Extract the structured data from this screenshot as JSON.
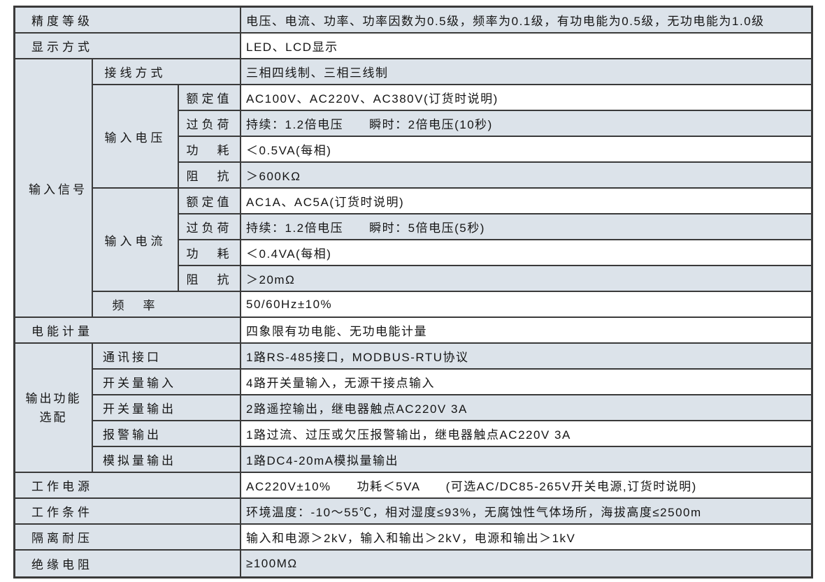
{
  "colors": {
    "cell_blue": "#dce3ea",
    "cell_white": "#ffffff",
    "border": "#3a3a3a",
    "text": "#151515"
  },
  "table": {
    "accuracy": {
      "label": "精度等级",
      "value": "电压、电流、功率、功率因数为0.5级，频率为0.1级，有功电能为0.5级，无功电能为1.0级"
    },
    "display": {
      "label": "显示方式",
      "value": "LED、LCD显示"
    },
    "input_signal": {
      "label": "输入信号",
      "wiring": {
        "label": "接线方式",
        "value": "三相四线制、三相三线制"
      },
      "voltage": {
        "label": "输入电压",
        "rated": {
          "label": "额定值",
          "value": "AC100V、AC220V、AC380V(订货时说明)"
        },
        "overload": {
          "label": "过负荷",
          "value": "持续：1.2倍电压　　瞬时：2倍电压(10秒)"
        },
        "consumption": {
          "label": "功　耗",
          "value": "＜0.5VA(每相)"
        },
        "impedance": {
          "label": "阻　抗",
          "value": "＞600KΩ"
        }
      },
      "current": {
        "label": "输入电流",
        "rated": {
          "label": "额定值",
          "value": "AC1A、AC5A(订货时说明)"
        },
        "overload": {
          "label": "过负荷",
          "value": "持续：1.2倍电压　　瞬时：5倍电压(5秒)"
        },
        "consumption": {
          "label": "功　耗",
          "value": "＜0.4VA(每相)"
        },
        "impedance": {
          "label": "阻　抗",
          "value": "＞20mΩ"
        }
      },
      "frequency": {
        "label": "频　率",
        "value": "50/60Hz±10%"
      }
    },
    "energy_metering": {
      "label": "电能计量",
      "value": "四象限有功电能、无功电能计量"
    },
    "output_options": {
      "label": "输出功能\n选配",
      "comm": {
        "label": "通讯接口",
        "value": "1路RS-485接口，MODBUS-RTU协议"
      },
      "digital_input": {
        "label": "开关量输入",
        "value": "4路开关量输入，无源干接点输入"
      },
      "digital_output": {
        "label": "开关量输出",
        "value": "2路遥控输出，继电器触点AC220V 3A"
      },
      "alarm_output": {
        "label": "报警输出",
        "value": "1路过流、过压或欠压报警输出，继电器触点AC220V 3A"
      },
      "analog_output": {
        "label": "模拟量输出",
        "value": "1路DC4-20mA模拟量输出"
      }
    },
    "power_supply": {
      "label": "工作电源",
      "value": "AC220V±10%　　功耗＜5VA　　(可选AC/DC85-265V开关电源,订货时说明)"
    },
    "work_conditions": {
      "label": "工作条件",
      "value": "环境温度：-10～55℃，相对湿度≤93%，无腐蚀性气体场所，海拔高度≤2500m"
    },
    "isolation_withstand": {
      "label": "隔离耐压",
      "value": "输入和电源＞2kV，输入和输出＞2kV，电源和输出＞1kV"
    },
    "insulation_resistance": {
      "label": "绝缘电阻",
      "value": "≥100MΩ"
    }
  }
}
